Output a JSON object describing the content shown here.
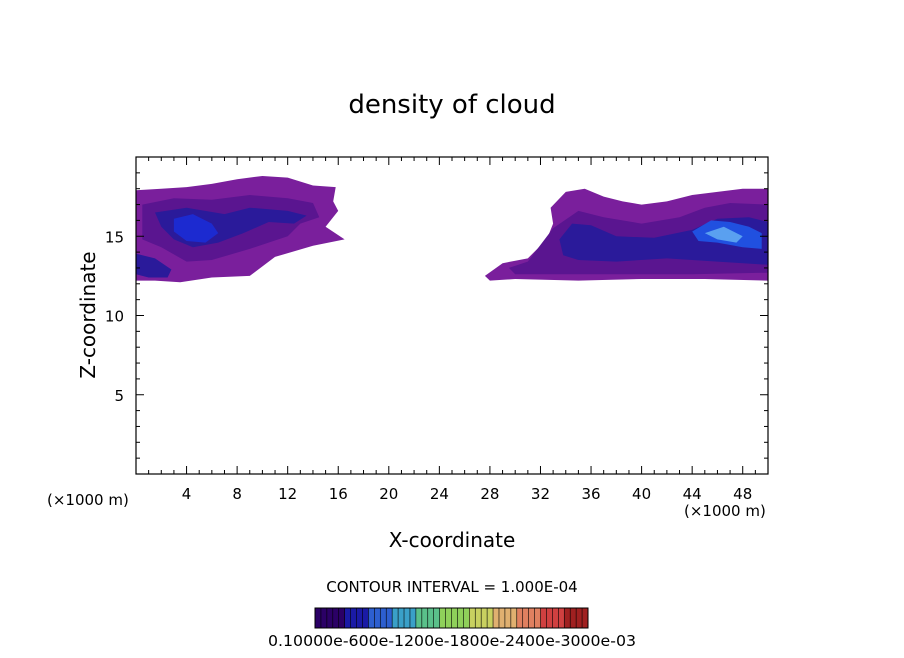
{
  "chart_data": {
    "type": "heatmap",
    "title": "density of cloud",
    "xlabel": "X-coordinate",
    "ylabel": "Z-coordinate",
    "x_unit_left": "(×1000 m)",
    "x_unit_right": "(×1000 m)",
    "xlim": [
      0,
      50
    ],
    "ylim": [
      0,
      20
    ],
    "x_ticks": [
      4,
      8,
      12,
      16,
      20,
      24,
      28,
      32,
      36,
      40,
      44,
      48
    ],
    "x_tick_labels": [
      "4",
      "8",
      "12",
      "16",
      "20",
      "24",
      "28",
      "32",
      "36",
      "40",
      "44",
      "48"
    ],
    "y_ticks": [
      5,
      10,
      15
    ],
    "y_tick_labels": [
      "5",
      "10",
      "15"
    ],
    "contour_interval_text": "CONTOUR INTERVAL = 1.000E-04",
    "colorbar_labels_text": "0.10000e-600e-1200e-1800e-2400e-3000e-03",
    "colorbar_colors": [
      "#2b0066",
      "#1a1aa6",
      "#2d5fd0",
      "#3aa0c8",
      "#5ac08a",
      "#8fd05a",
      "#c8d060",
      "#e0b070",
      "#e08060",
      "#d04040",
      "#a02020"
    ],
    "regions": [
      {
        "name": "cloud-left-outer",
        "color": "#7a1f9c",
        "points": [
          [
            0,
            17.9
          ],
          [
            2,
            18.0
          ],
          [
            4,
            18.1
          ],
          [
            6,
            18.3
          ],
          [
            8,
            18.6
          ],
          [
            10,
            18.8
          ],
          [
            12,
            18.7
          ],
          [
            14,
            18.2
          ],
          [
            15.8,
            18.1
          ],
          [
            15.6,
            17.2
          ],
          [
            16,
            16.6
          ],
          [
            15,
            15.6
          ],
          [
            16.5,
            14.8
          ],
          [
            14,
            14.4
          ],
          [
            11,
            13.7
          ],
          [
            9,
            12.5
          ],
          [
            6,
            12.4
          ],
          [
            3.5,
            12.1
          ],
          [
            1.5,
            12.2
          ],
          [
            0,
            12.2
          ]
        ]
      },
      {
        "name": "cloud-left-mid",
        "color": "#5a1590",
        "points": [
          [
            0.5,
            17.0
          ],
          [
            3,
            17.4
          ],
          [
            6,
            17.3
          ],
          [
            9,
            17.6
          ],
          [
            12,
            17.4
          ],
          [
            14,
            17.1
          ],
          [
            14.5,
            16.2
          ],
          [
            13,
            15.8
          ],
          [
            12,
            15.0
          ],
          [
            9,
            14.2
          ],
          [
            6,
            13.5
          ],
          [
            4,
            13.4
          ],
          [
            2,
            14.3
          ],
          [
            0.5,
            14.8
          ]
        ]
      },
      {
        "name": "cloud-left-dark",
        "color": "#2a1a9a",
        "points": [
          [
            1.5,
            16.5
          ],
          [
            4,
            16.8
          ],
          [
            7,
            16.4
          ],
          [
            9,
            16.8
          ],
          [
            12,
            16.6
          ],
          [
            13.5,
            16.3
          ],
          [
            12.5,
            15.8
          ],
          [
            10.5,
            15.9
          ],
          [
            8.5,
            15.2
          ],
          [
            6.5,
            14.6
          ],
          [
            4.5,
            14.3
          ],
          [
            3,
            14.8
          ],
          [
            2,
            15.6
          ]
        ]
      },
      {
        "name": "cloud-left-core",
        "color": "#1c2ad0",
        "points": [
          [
            3,
            16.1
          ],
          [
            4.5,
            16.4
          ],
          [
            6,
            15.8
          ],
          [
            6.5,
            15.2
          ],
          [
            5.5,
            14.6
          ],
          [
            4,
            14.7
          ],
          [
            3,
            15.3
          ]
        ]
      },
      {
        "name": "cloud-left-bottom",
        "color": "#2a1a9a",
        "points": [
          [
            0,
            13.9
          ],
          [
            1.5,
            13.6
          ],
          [
            2.8,
            12.9
          ],
          [
            2.5,
            12.4
          ],
          [
            1,
            12.4
          ],
          [
            0,
            12.6
          ]
        ]
      },
      {
        "name": "cloud-right-outer",
        "color": "#7a1f9c",
        "points": [
          [
            27.6,
            12.5
          ],
          [
            29,
            13.3
          ],
          [
            31,
            13.6
          ],
          [
            32.5,
            14.8
          ],
          [
            33,
            15.8
          ],
          [
            32.8,
            16.8
          ],
          [
            34,
            17.8
          ],
          [
            35.5,
            18.0
          ],
          [
            37,
            17.5
          ],
          [
            38.5,
            17.2
          ],
          [
            40,
            17.0
          ],
          [
            42,
            17.2
          ],
          [
            44,
            17.6
          ],
          [
            46,
            17.8
          ],
          [
            48,
            18.0
          ],
          [
            50,
            18.0
          ],
          [
            50,
            12.2
          ],
          [
            45,
            12.3
          ],
          [
            40,
            12.3
          ],
          [
            35,
            12.2
          ],
          [
            30,
            12.3
          ],
          [
            28,
            12.2
          ]
        ]
      },
      {
        "name": "cloud-right-mid",
        "color": "#5a1590",
        "points": [
          [
            29.5,
            13.0
          ],
          [
            31,
            13.4
          ],
          [
            33,
            15.5
          ],
          [
            35,
            16.6
          ],
          [
            37,
            16.2
          ],
          [
            40,
            15.8
          ],
          [
            43,
            16.2
          ],
          [
            45,
            16.8
          ],
          [
            47,
            17.1
          ],
          [
            50,
            17.0
          ],
          [
            50,
            12.7
          ],
          [
            44,
            12.6
          ],
          [
            38,
            12.6
          ],
          [
            33,
            12.6
          ],
          [
            30,
            12.6
          ]
        ]
      },
      {
        "name": "cloud-right-dark",
        "color": "#2a1a9a",
        "points": [
          [
            33.5,
            14.8
          ],
          [
            34.5,
            15.8
          ],
          [
            36,
            15.7
          ],
          [
            38,
            15.0
          ],
          [
            41,
            14.9
          ],
          [
            44,
            15.4
          ],
          [
            46,
            16.1
          ],
          [
            48.5,
            16.2
          ],
          [
            50,
            15.9
          ],
          [
            50,
            13.2
          ],
          [
            46,
            13.4
          ],
          [
            42,
            13.6
          ],
          [
            38,
            13.4
          ],
          [
            35,
            13.5
          ],
          [
            33.8,
            13.8
          ]
        ]
      },
      {
        "name": "cloud-right-core",
        "color": "#2050e0",
        "points": [
          [
            44,
            15.3
          ],
          [
            45.5,
            16.0
          ],
          [
            47,
            15.9
          ],
          [
            48.5,
            15.6
          ],
          [
            49.5,
            15.2
          ],
          [
            49.5,
            14.2
          ],
          [
            48,
            14.3
          ],
          [
            46,
            14.6
          ],
          [
            44.5,
            14.7
          ]
        ]
      },
      {
        "name": "cloud-right-lightcore",
        "color": "#5aa0f0",
        "points": [
          [
            45,
            15.2
          ],
          [
            46.5,
            15.6
          ],
          [
            48,
            15.0
          ],
          [
            47.5,
            14.6
          ],
          [
            46,
            14.8
          ]
        ]
      }
    ]
  }
}
